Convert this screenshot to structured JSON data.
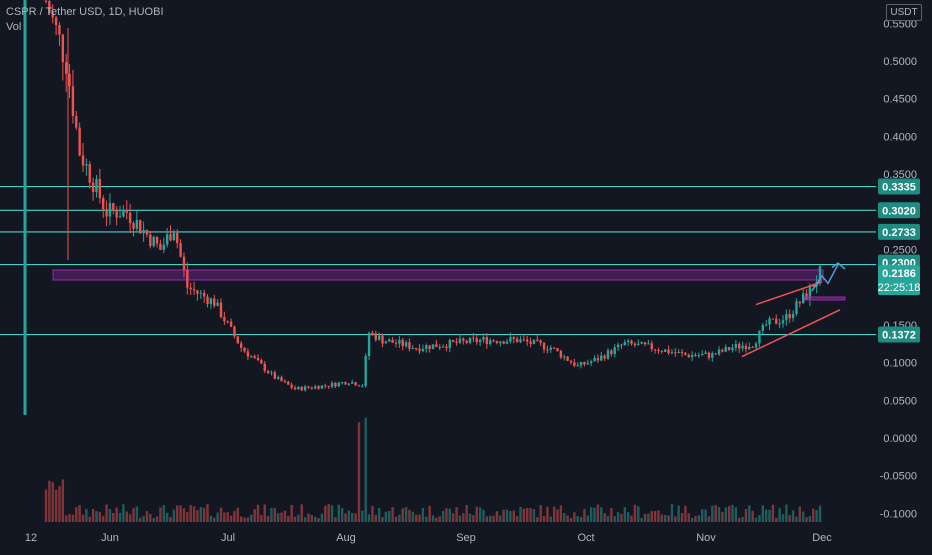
{
  "header": {
    "title": "CSPR / Tether USD, 1D, HUOBI",
    "volume_label": "Vol"
  },
  "price_axis": {
    "unit": "USDT",
    "tick_labels": [
      "0.5500",
      "0.5000",
      "0.4500",
      "0.4000",
      "0.3500",
      "0.2500",
      "0.1500",
      "0.1000",
      "0.0500",
      "0.0000",
      "-0.0500",
      "-0.1000"
    ]
  },
  "time_axis": {
    "labels": [
      "12",
      "Jun",
      "Jul",
      "Aug",
      "Sep",
      "Oct",
      "Nov",
      "Dec"
    ]
  },
  "horizontal_levels": [
    {
      "value": 0.3335,
      "label": "0.3335"
    },
    {
      "value": 0.302,
      "label": "0.3020"
    },
    {
      "value": 0.2733,
      "label": "0.2733"
    },
    {
      "value": 0.23,
      "label": "0.2300"
    },
    {
      "value": 0.1372,
      "label": "0.1372"
    }
  ],
  "current_price": {
    "value": 0.2186,
    "label": "0.2186",
    "countdown": "22:25:18"
  },
  "colors": {
    "background": "#131722",
    "up": "#26a69a",
    "down": "#ef5350",
    "level_line": "#4dd0c4",
    "zone": "#9c27b0",
    "trend_line": "#f2545b",
    "projection_arrow": "#5b9bd5",
    "axis_text": "#b2b5be"
  },
  "chart_data": {
    "type": "candlestick",
    "title": "CSPR / Tether USD, 1D, HUOBI",
    "xlabel": "",
    "ylabel": "",
    "ylim": [
      -0.1,
      0.55
    ],
    "grid": false,
    "x_labels": [
      "12",
      "Jun",
      "Jul",
      "Aug",
      "Sep",
      "Oct",
      "Nov",
      "Dec"
    ],
    "close_trace": [
      [
        "12",
        0.03
      ],
      [
        "12",
        0.6
      ],
      [
        "Jun",
        0.3
      ],
      [
        "Jun",
        0.25
      ],
      [
        "Jul",
        0.14
      ],
      [
        "Jul",
        0.065
      ],
      [
        "Aug",
        0.075
      ],
      [
        "Aug",
        0.15
      ],
      [
        "Aug",
        0.13
      ],
      [
        "Sep",
        0.13
      ],
      [
        "Sep",
        0.11
      ],
      [
        "Oct",
        0.125
      ],
      [
        "Oct",
        0.11
      ],
      [
        "Nov",
        0.13
      ],
      [
        "Nov",
        0.2
      ],
      [
        "Dec",
        0.2186
      ]
    ],
    "volume_series": "present, peak near Aug",
    "current_price": 0.2186,
    "levels": [
      0.3335,
      0.302,
      0.2733,
      0.23,
      0.1372
    ]
  }
}
